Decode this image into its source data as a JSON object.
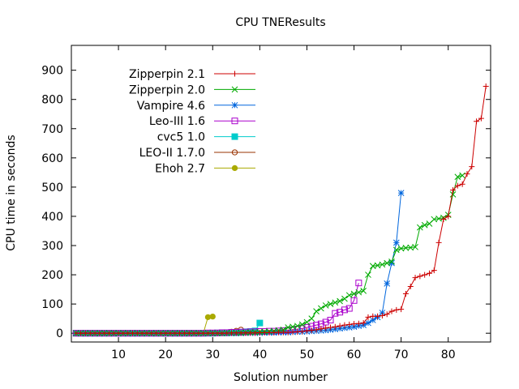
{
  "chart_data": {
    "type": "line",
    "title": "CPU TNEResults",
    "xlabel": "Solution number",
    "ylabel": "CPU time in seconds",
    "xlim": [
      0,
      89
    ],
    "ylim": [
      -30,
      985
    ],
    "xticks": [
      10,
      20,
      30,
      40,
      50,
      60,
      70,
      80
    ],
    "yticks": [
      0,
      100,
      200,
      300,
      400,
      500,
      600,
      700,
      800,
      900
    ],
    "grid": false,
    "legend_position": "top-left",
    "series": [
      {
        "name": "Zipperpin 2.1",
        "color": "#cc0000",
        "marker": "plus",
        "x": [
          1,
          2,
          3,
          4,
          5,
          6,
          7,
          8,
          9,
          10,
          11,
          12,
          13,
          14,
          15,
          16,
          17,
          18,
          19,
          20,
          21,
          22,
          23,
          24,
          25,
          26,
          27,
          28,
          29,
          30,
          31,
          32,
          33,
          34,
          35,
          36,
          37,
          38,
          39,
          40,
          41,
          42,
          43,
          44,
          45,
          46,
          47,
          48,
          49,
          50,
          51,
          52,
          53,
          54,
          55,
          56,
          57,
          58,
          59,
          60,
          61,
          62,
          63,
          64,
          65,
          66,
          67,
          68,
          69,
          70,
          71,
          72,
          73,
          74,
          75,
          76,
          77,
          78,
          79,
          80,
          81,
          82,
          83,
          84,
          85,
          86,
          87,
          88
        ],
        "y": [
          0,
          0,
          0,
          0,
          0,
          0,
          0,
          0,
          0,
          0,
          0,
          0,
          0,
          0,
          0,
          0,
          0,
          0,
          0,
          0,
          0,
          0,
          0,
          0,
          0,
          0,
          0,
          0,
          0,
          0,
          0,
          0,
          0,
          1,
          1,
          1,
          1,
          1,
          1,
          2,
          2,
          2,
          2,
          3,
          3,
          3,
          4,
          5,
          6,
          8,
          10,
          12,
          15,
          18,
          20,
          22,
          25,
          28,
          30,
          32,
          33,
          35,
          55,
          58,
          58,
          60,
          65,
          75,
          80,
          82,
          135,
          160,
          190,
          195,
          200,
          205,
          215,
          310,
          390,
          400,
          490,
          505,
          510,
          545,
          570,
          725,
          735,
          845
        ]
      },
      {
        "name": "Zipperpin 2.0",
        "color": "#00aa00",
        "marker": "x",
        "x": [
          1,
          2,
          3,
          4,
          5,
          6,
          7,
          8,
          9,
          10,
          11,
          12,
          13,
          14,
          15,
          16,
          17,
          18,
          19,
          20,
          21,
          22,
          23,
          24,
          25,
          26,
          27,
          28,
          29,
          30,
          31,
          32,
          33,
          34,
          35,
          36,
          37,
          38,
          39,
          40,
          41,
          42,
          43,
          44,
          45,
          46,
          47,
          48,
          49,
          50,
          51,
          52,
          53,
          54,
          55,
          56,
          57,
          58,
          59,
          60,
          61,
          62,
          63,
          64,
          65,
          66,
          67,
          68,
          69,
          70,
          71,
          72,
          73,
          74,
          75,
          76,
          77,
          78,
          79,
          80,
          81,
          82,
          83
        ],
        "y": [
          0,
          0,
          0,
          0,
          0,
          0,
          0,
          0,
          0,
          0,
          0,
          0,
          0,
          0,
          0,
          0,
          0,
          0,
          0,
          0,
          0,
          0,
          0,
          0,
          0,
          0,
          0,
          0,
          0,
          0,
          0,
          0,
          1,
          1,
          1,
          2,
          2,
          3,
          3,
          4,
          5,
          6,
          8,
          10,
          12,
          20,
          22,
          25,
          30,
          38,
          50,
          75,
          85,
          95,
          100,
          105,
          110,
          118,
          130,
          135,
          140,
          145,
          200,
          230,
          232,
          235,
          240,
          245,
          285,
          290,
          292,
          293,
          295,
          362,
          370,
          375,
          390,
          392,
          395,
          405,
          475,
          535,
          540
        ]
      },
      {
        "name": "Vampire 4.6",
        "color": "#0066dd",
        "marker": "star",
        "x": [
          1,
          2,
          3,
          4,
          5,
          6,
          7,
          8,
          9,
          10,
          11,
          12,
          13,
          14,
          15,
          16,
          17,
          18,
          19,
          20,
          21,
          22,
          23,
          24,
          25,
          26,
          27,
          28,
          29,
          30,
          31,
          32,
          33,
          34,
          35,
          36,
          37,
          38,
          39,
          40,
          41,
          42,
          43,
          44,
          45,
          46,
          47,
          48,
          49,
          50,
          51,
          52,
          53,
          54,
          55,
          56,
          57,
          58,
          59,
          60,
          61,
          62,
          63,
          64,
          65,
          66,
          67,
          68,
          69,
          70
        ],
        "y": [
          0,
          0,
          0,
          0,
          0,
          0,
          0,
          0,
          0,
          0,
          0,
          0,
          0,
          0,
          0,
          0,
          0,
          0,
          0,
          0,
          0,
          0,
          0,
          0,
          0,
          0,
          0,
          0,
          0,
          0,
          0,
          0,
          0,
          0,
          0,
          0,
          1,
          1,
          1,
          1,
          2,
          2,
          2,
          3,
          3,
          3,
          4,
          5,
          5,
          6,
          7,
          8,
          9,
          10,
          12,
          14,
          16,
          18,
          20,
          22,
          25,
          28,
          35,
          45,
          55,
          70,
          170,
          240,
          310,
          480
        ]
      },
      {
        "name": "Leo-III 1.6",
        "color": "#aa00cc",
        "marker": "square",
        "x": [
          1,
          2,
          3,
          4,
          5,
          6,
          7,
          8,
          9,
          10,
          11,
          12,
          13,
          14,
          15,
          16,
          17,
          18,
          19,
          20,
          21,
          22,
          23,
          24,
          25,
          26,
          27,
          28,
          29,
          30,
          31,
          32,
          33,
          34,
          35,
          36,
          37,
          38,
          39,
          40,
          41,
          42,
          43,
          44,
          45,
          46,
          47,
          48,
          49,
          50,
          51,
          52,
          53,
          54,
          55,
          56,
          57,
          58,
          59,
          60,
          61
        ],
        "y": [
          0,
          0,
          0,
          0,
          0,
          0,
          0,
          0,
          0,
          0,
          0,
          0,
          0,
          0,
          0,
          0,
          0,
          0,
          0,
          0,
          0,
          0,
          0,
          0,
          0,
          0,
          0,
          0,
          1,
          1,
          1,
          2,
          2,
          3,
          3,
          4,
          4,
          5,
          5,
          6,
          6,
          7,
          7,
          8,
          9,
          10,
          12,
          14,
          16,
          20,
          24,
          28,
          32,
          38,
          45,
          68,
          72,
          80,
          85,
          112,
          172
        ]
      },
      {
        "name": "cvc5 1.0",
        "color": "#00cccc",
        "marker": "filled-square",
        "x": [
          1,
          2,
          3,
          4,
          5,
          6,
          7,
          8,
          9,
          10,
          11,
          12,
          13,
          14,
          15,
          16,
          17,
          18,
          19,
          20,
          21,
          22,
          23,
          24,
          25,
          26,
          27,
          28,
          29,
          30,
          31,
          32,
          33,
          34,
          35,
          36,
          37,
          38,
          39,
          40
        ],
        "y": [
          0,
          0,
          0,
          0,
          0,
          0,
          0,
          0,
          0,
          0,
          0,
          0,
          0,
          0,
          0,
          0,
          0,
          0,
          0,
          0,
          0,
          0,
          0,
          0,
          0,
          0,
          0,
          0,
          0,
          0,
          1,
          1,
          1,
          2,
          2,
          3,
          5,
          6,
          8,
          35
        ]
      },
      {
        "name": "LEO-II 1.7.0",
        "color": "#993300",
        "marker": "circle",
        "x": [
          1,
          2,
          3,
          4,
          5,
          6,
          7,
          8,
          9,
          10,
          11,
          12,
          13,
          14,
          15,
          16,
          17,
          18,
          19,
          20,
          21,
          22,
          23,
          24,
          25,
          26,
          27,
          28,
          29,
          30,
          31,
          32,
          33,
          34,
          35,
          36
        ],
        "y": [
          0,
          0,
          0,
          0,
          0,
          0,
          0,
          0,
          0,
          0,
          0,
          0,
          0,
          0,
          0,
          0,
          0,
          0,
          0,
          0,
          0,
          0,
          0,
          0,
          0,
          0,
          0,
          0,
          1,
          1,
          1,
          2,
          3,
          5,
          8,
          12
        ]
      },
      {
        "name": "Ehoh 2.7",
        "color": "#aaaa00",
        "marker": "filled-circle",
        "x": [
          1,
          2,
          3,
          4,
          5,
          6,
          7,
          8,
          9,
          10,
          11,
          12,
          13,
          14,
          15,
          16,
          17,
          18,
          19,
          20,
          21,
          22,
          23,
          24,
          25,
          26,
          27,
          28,
          29,
          30
        ],
        "y": [
          0,
          0,
          0,
          0,
          0,
          0,
          0,
          0,
          0,
          0,
          0,
          0,
          0,
          0,
          0,
          0,
          0,
          0,
          0,
          0,
          0,
          0,
          0,
          0,
          0,
          0,
          0,
          0,
          55,
          57
        ]
      }
    ]
  }
}
